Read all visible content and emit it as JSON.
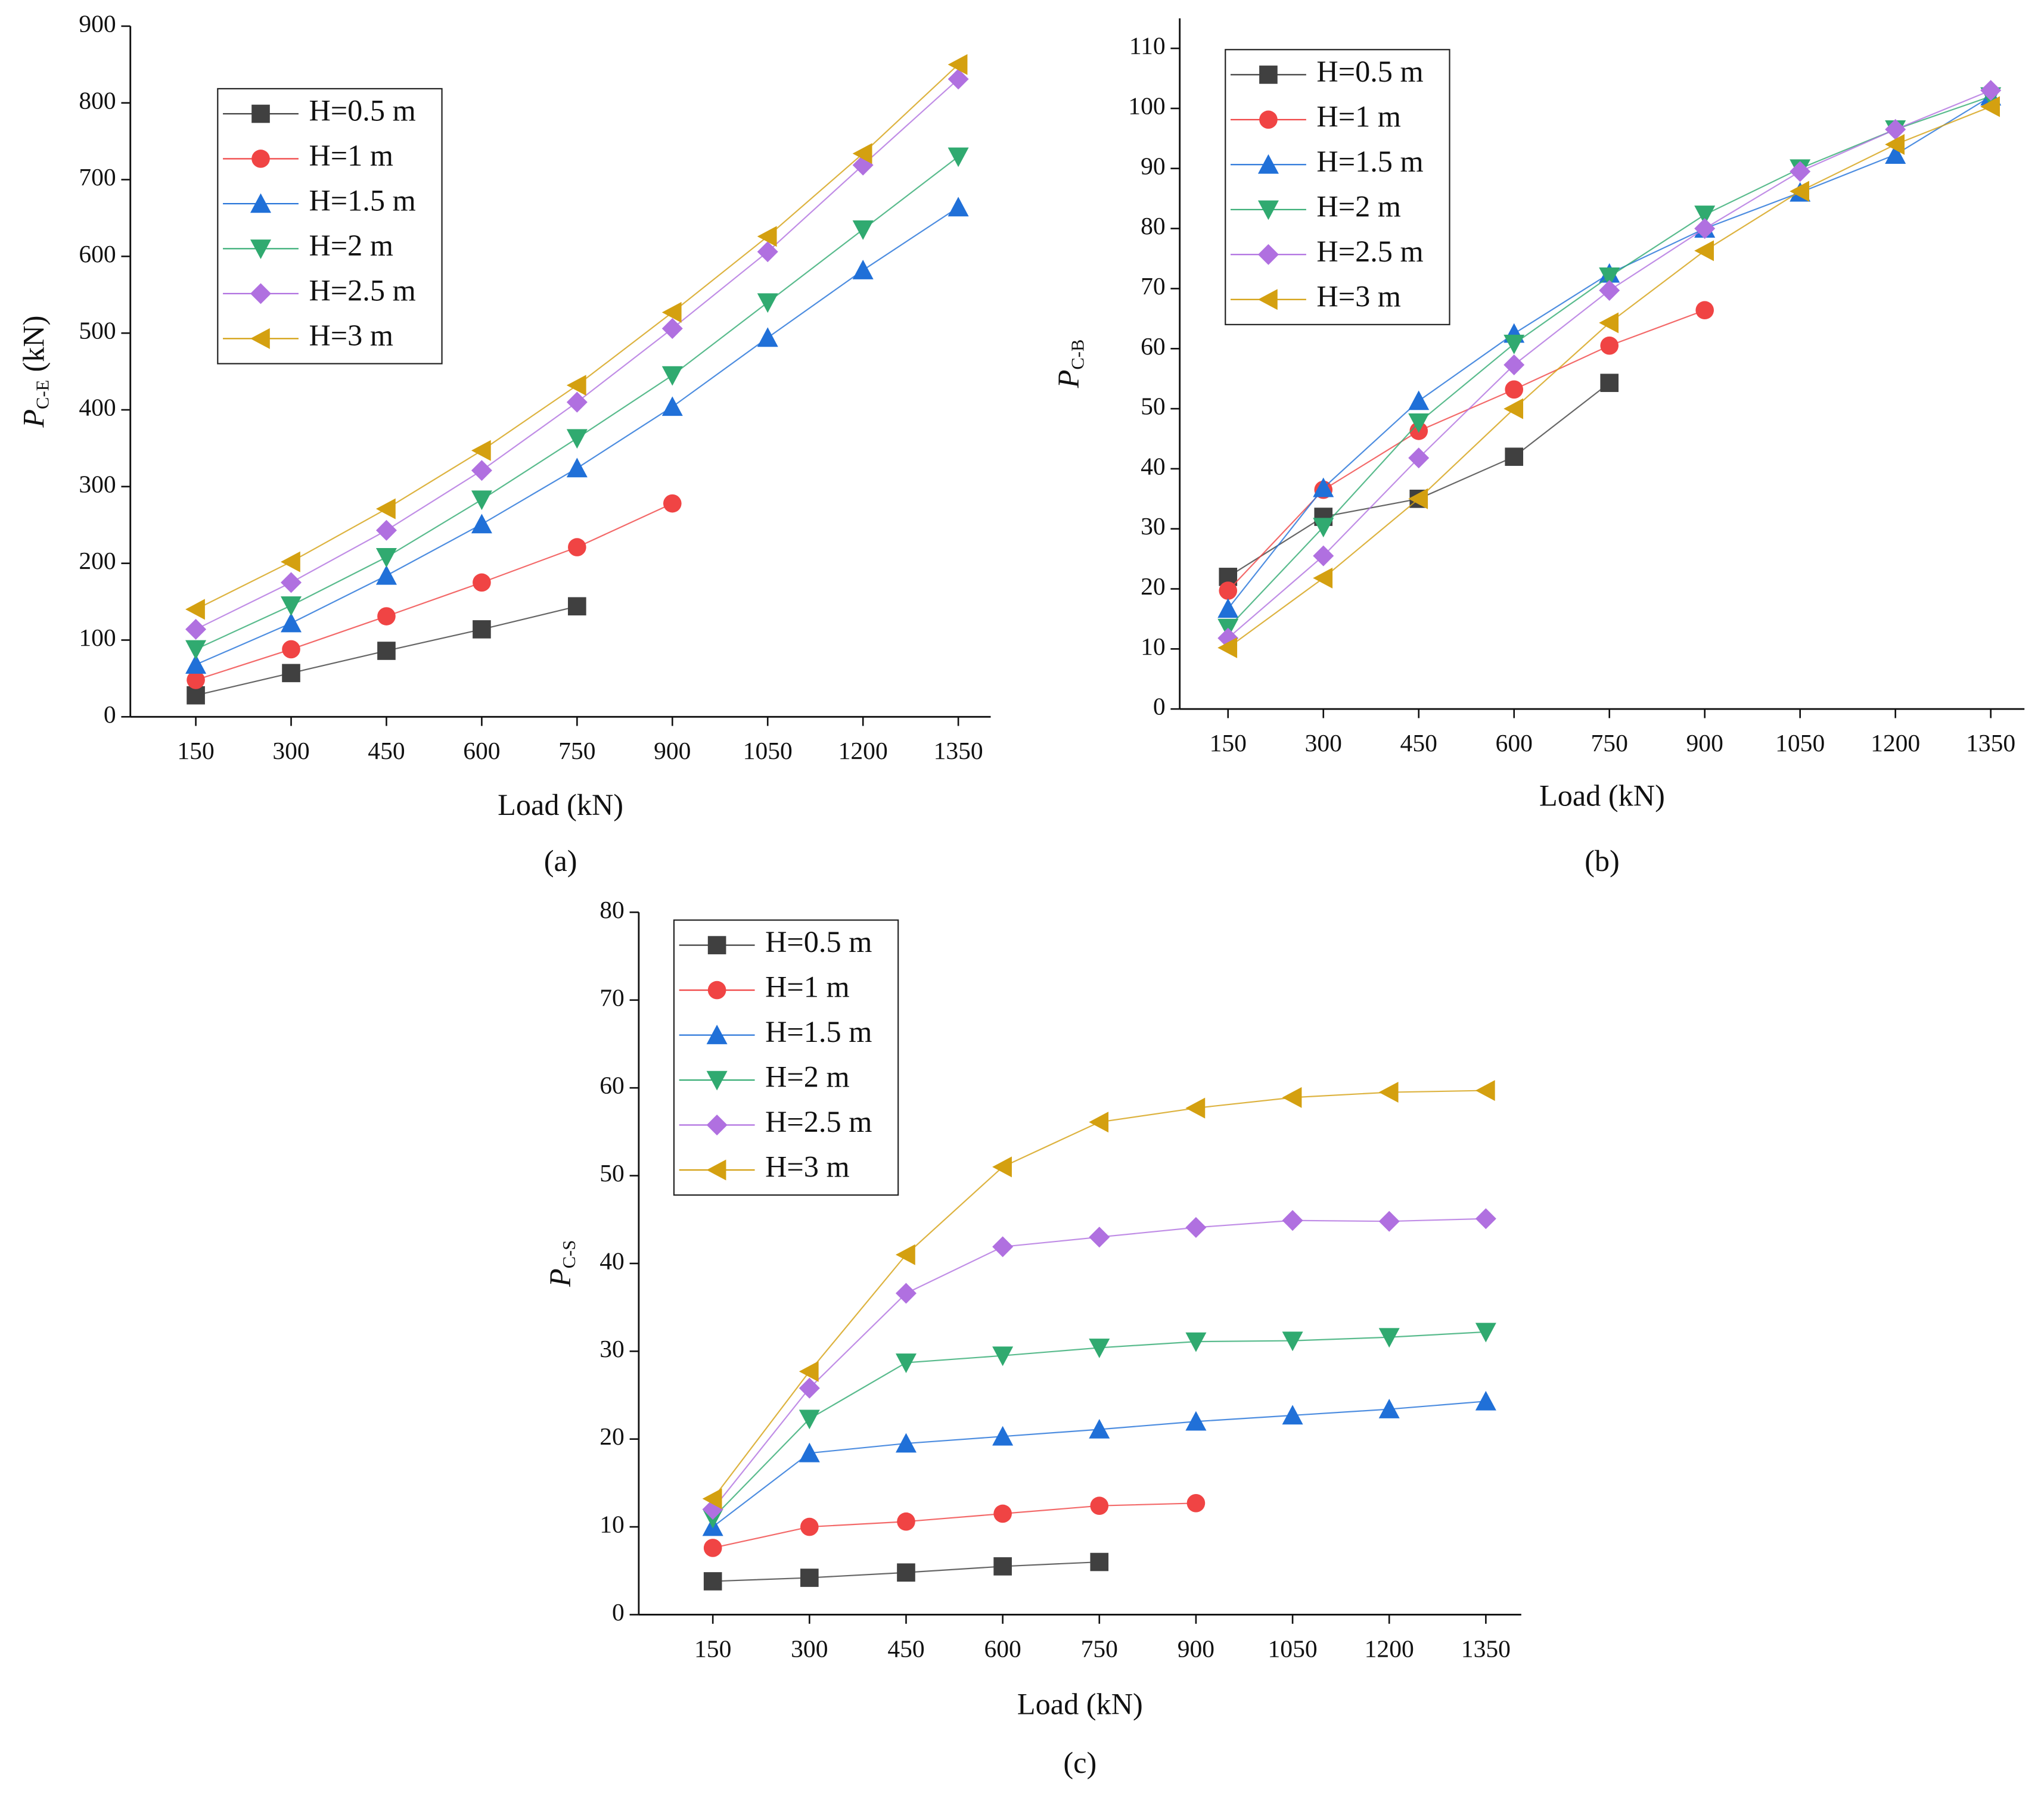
{
  "chart_data": [
    {
      "type": "line",
      "label": "(a)",
      "xlabel": "Load (kN)",
      "ylabel": {
        "main": "P",
        "sub": "C-E",
        "unit": "(kN)"
      },
      "xlim": [
        47,
        1401
      ],
      "xticks": [
        150,
        300,
        450,
        600,
        750,
        900,
        1050,
        1200,
        1350
      ],
      "ylim": [
        0,
        900
      ],
      "yticks": [
        0,
        100,
        200,
        300,
        400,
        500,
        600,
        700,
        800,
        900
      ],
      "legend": "upper left",
      "series": [
        {
          "name": "H=0.5 m",
          "color": "#404040",
          "marker": "square",
          "x": [
            150,
            300,
            450,
            600,
            750
          ],
          "values": [
            28,
            57,
            86,
            114,
            144
          ]
        },
        {
          "name": "H=1 m",
          "color": "#f04444",
          "marker": "circle",
          "x": [
            150,
            300,
            450,
            600,
            750,
            900
          ],
          "values": [
            48,
            88,
            131,
            175,
            221,
            278
          ]
        },
        {
          "name": "H=1.5 m",
          "color": "#2070d8",
          "marker": "triangle-up",
          "x": [
            150,
            300,
            450,
            600,
            750,
            900,
            1050,
            1200,
            1350
          ],
          "values": [
            68,
            122,
            184,
            251,
            324,
            404,
            494,
            582,
            664
          ]
        },
        {
          "name": "H=2 m",
          "color": "#30aa70",
          "marker": "triangle-down",
          "x": [
            150,
            300,
            450,
            600,
            750,
            900,
            1050,
            1200,
            1350
          ],
          "values": [
            88,
            145,
            208,
            283,
            363,
            445,
            540,
            635,
            730
          ]
        },
        {
          "name": "H=2.5 m",
          "color": "#b070e0",
          "marker": "diamond",
          "x": [
            150,
            300,
            450,
            600,
            750,
            900,
            1050,
            1200,
            1350
          ],
          "values": [
            114,
            175,
            243,
            321,
            410,
            506,
            606,
            719,
            831
          ]
        },
        {
          "name": "H=3 m",
          "color": "#d4a010",
          "marker": "triangle-left",
          "x": [
            150,
            300,
            450,
            600,
            750,
            900,
            1050,
            1200,
            1350
          ],
          "values": [
            140,
            202,
            271,
            347,
            432,
            527,
            626,
            734,
            850
          ]
        }
      ]
    },
    {
      "type": "line",
      "label": "(b)",
      "xlabel": "Load (kN)",
      "ylabel": {
        "main": "P",
        "sub": "C-B"
      },
      "xlim": [
        74,
        1403
      ],
      "xticks": [
        150,
        300,
        450,
        600,
        750,
        900,
        1050,
        1200,
        1350
      ],
      "ylim": [
        0,
        115
      ],
      "yticks": [
        0,
        10,
        20,
        30,
        40,
        50,
        60,
        70,
        80,
        90,
        100,
        110
      ],
      "legend": "upper left",
      "series": [
        {
          "name": "H=0.5 m",
          "color": "#404040",
          "marker": "square",
          "x": [
            150,
            300,
            450,
            600,
            750
          ],
          "values": [
            22,
            32,
            35,
            42,
            54.3
          ]
        },
        {
          "name": "H=1 m",
          "color": "#f04444",
          "marker": "circle",
          "x": [
            150,
            300,
            450,
            600,
            750,
            900
          ],
          "values": [
            19.7,
            36.5,
            46.3,
            53.2,
            60.5,
            66.4
          ]
        },
        {
          "name": "H=1.5 m",
          "color": "#2070d8",
          "marker": "triangle-up",
          "x": [
            150,
            300,
            450,
            600,
            750,
            900,
            1050,
            1200,
            1350
          ],
          "values": [
            16.7,
            36.8,
            51.3,
            62.5,
            72.5,
            80,
            86,
            92.3,
            102
          ]
        },
        {
          "name": "H=2 m",
          "color": "#30aa70",
          "marker": "triangle-down",
          "x": [
            150,
            300,
            450,
            600,
            750,
            900,
            1050,
            1200,
            1350
          ],
          "values": [
            13.5,
            30.3,
            47.7,
            60.8,
            72,
            82.3,
            90,
            96.5,
            102
          ]
        },
        {
          "name": "H=2.5 m",
          "color": "#b070e0",
          "marker": "diamond",
          "x": [
            150,
            300,
            450,
            600,
            750,
            900,
            1050,
            1200,
            1350
          ],
          "values": [
            11.8,
            25.5,
            41.8,
            57.3,
            69.7,
            80,
            89.5,
            96.5,
            103
          ]
        },
        {
          "name": "H=3 m",
          "color": "#d4a010",
          "marker": "triangle-left",
          "x": [
            150,
            300,
            450,
            600,
            750,
            900,
            1050,
            1200,
            1350
          ],
          "values": [
            10.2,
            21.8,
            35,
            50,
            64.3,
            76.3,
            86.2,
            94,
            100.3
          ]
        }
      ]
    },
    {
      "type": "line",
      "label": "(c)",
      "xlabel": "Load (kN)",
      "ylabel": {
        "main": "P",
        "sub": "C-S"
      },
      "xlim": [
        35,
        1405
      ],
      "xticks": [
        150,
        300,
        450,
        600,
        750,
        900,
        1050,
        1200,
        1350
      ],
      "ylim": [
        0,
        80
      ],
      "yticks": [
        0,
        10,
        20,
        30,
        40,
        50,
        60,
        70,
        80
      ],
      "legend": "upper left",
      "series": [
        {
          "name": "H=0.5 m",
          "color": "#404040",
          "marker": "square",
          "x": [
            150,
            300,
            450,
            600,
            750
          ],
          "values": [
            3.8,
            4.2,
            4.8,
            5.5,
            6
          ]
        },
        {
          "name": "H=1 m",
          "color": "#f04444",
          "marker": "circle",
          "x": [
            150,
            300,
            450,
            600,
            750,
            900
          ],
          "values": [
            7.6,
            10,
            10.6,
            11.5,
            12.4,
            12.7
          ]
        },
        {
          "name": "H=1.5 m",
          "color": "#2070d8",
          "marker": "triangle-up",
          "x": [
            150,
            300,
            450,
            600,
            750,
            900,
            1050,
            1200,
            1350
          ],
          "values": [
            10,
            18.4,
            19.5,
            20.3,
            21.1,
            22,
            22.7,
            23.4,
            24.3
          ]
        },
        {
          "name": "H=2 m",
          "color": "#30aa70",
          "marker": "triangle-down",
          "x": [
            150,
            300,
            450,
            600,
            750,
            900,
            1050,
            1200,
            1350
          ],
          "values": [
            11,
            22.3,
            28.7,
            29.5,
            30.4,
            31.1,
            31.2,
            31.6,
            32.2
          ]
        },
        {
          "name": "H=2.5 m",
          "color": "#b070e0",
          "marker": "diamond",
          "x": [
            150,
            300,
            450,
            600,
            750,
            900,
            1050,
            1200,
            1350
          ],
          "values": [
            12,
            25.8,
            36.6,
            41.9,
            43,
            44.1,
            44.9,
            44.8,
            45.1
          ]
        },
        {
          "name": "H=3 m",
          "color": "#d4a010",
          "marker": "triangle-left",
          "x": [
            150,
            300,
            450,
            600,
            750,
            900,
            1050,
            1200,
            1350
          ],
          "values": [
            13.2,
            27.7,
            41,
            51,
            56.1,
            57.7,
            58.9,
            59.5,
            59.7
          ]
        }
      ]
    }
  ]
}
